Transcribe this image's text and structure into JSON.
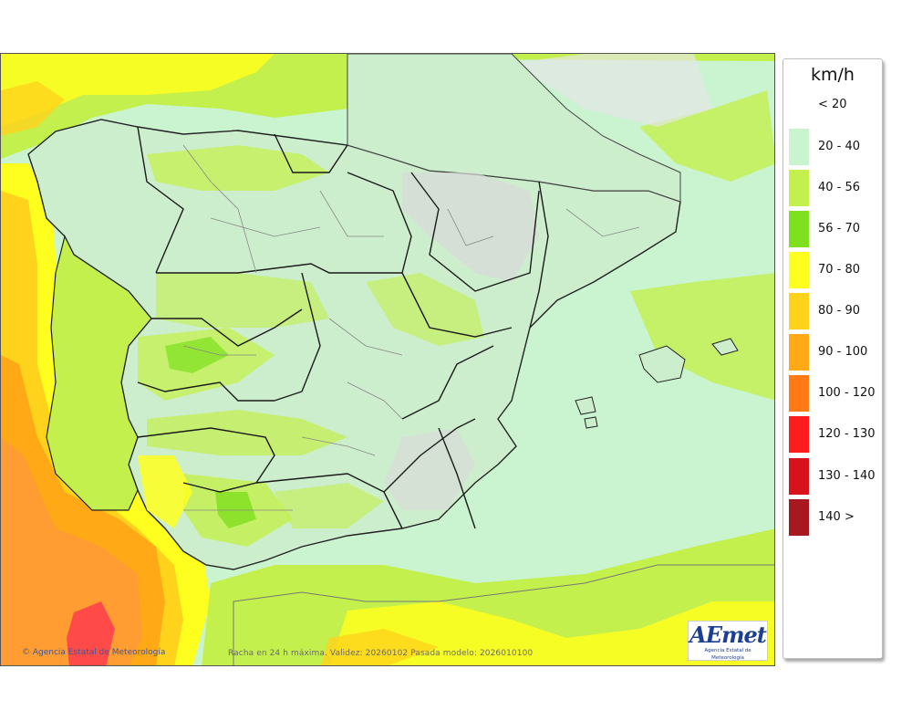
{
  "map": {
    "copyright": "Agencia Estatal de Meteorología",
    "caption": "Racha en 24 h máxima. Validez: 20260102 Pasada modelo: 2026010100",
    "logo_text": "AEmet",
    "logo_subtitle": "Agencia Estatal de Meteorología"
  },
  "legend": {
    "unit": "km/h",
    "items": [
      {
        "label": "< 20",
        "color": "#ffffff"
      },
      {
        "label": "20 - 40",
        "color": "#c9f4cf"
      },
      {
        "label": "40 - 56",
        "color": "#c3f04c"
      },
      {
        "label": "56 - 70",
        "color": "#7ee01e"
      },
      {
        "label": "70 - 80",
        "color": "#ffff1f"
      },
      {
        "label": "80 - 90",
        "color": "#ffd21c"
      },
      {
        "label": "90 - 100",
        "color": "#ffa916"
      },
      {
        "label": "100 - 120",
        "color": "#ff7a14"
      },
      {
        "label": "120 - 130",
        "color": "#ff1c1c"
      },
      {
        "label": "130 - 140",
        "color": "#d8121a"
      },
      {
        "label": "140 >",
        "color": "#a8181f"
      }
    ]
  }
}
